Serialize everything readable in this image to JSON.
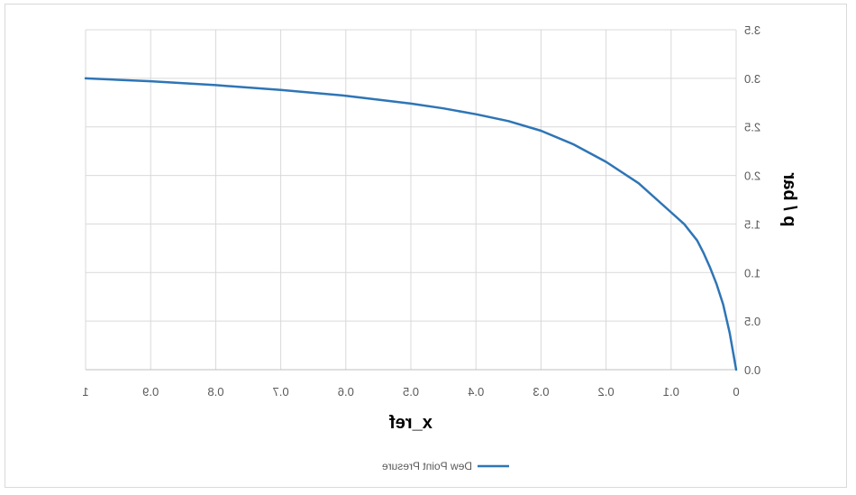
{
  "chart_data": {
    "type": "line",
    "mirrored_horizontally": true,
    "xlabel": "x_ref",
    "ylabel": "p / bar",
    "xlim": [
      0,
      1
    ],
    "ylim": [
      0,
      3.5
    ],
    "xticks": [
      0,
      0.1,
      0.2,
      0.3,
      0.4,
      0.5,
      0.6,
      0.7,
      0.8,
      0.9,
      1
    ],
    "xtick_labels": [
      "0",
      "0.1",
      "0.2",
      "0.3",
      "0.4",
      "0.5",
      "0.6",
      "0.7",
      "0.8",
      "0.9",
      "1"
    ],
    "yticks": [
      0,
      0.5,
      1.0,
      1.5,
      2.0,
      2.5,
      3.0,
      3.5
    ],
    "ytick_labels": [
      "0.0",
      "0.5",
      "1.0",
      "1.5",
      "2.0",
      "2.5",
      "3.0",
      "3.5"
    ],
    "grid": true,
    "legend_position": "bottom",
    "series": [
      {
        "name": "Dew Point Presure",
        "color": "#2e75b6",
        "x": [
          0,
          0.01,
          0.02,
          0.03,
          0.04,
          0.05,
          0.06,
          0.08,
          0.1,
          0.15,
          0.2,
          0.25,
          0.3,
          0.35,
          0.4,
          0.45,
          0.5,
          0.6,
          0.7,
          0.8,
          0.9,
          1.0
        ],
        "y": [
          0,
          0.38,
          0.67,
          0.88,
          1.05,
          1.2,
          1.33,
          1.5,
          1.62,
          1.92,
          2.14,
          2.32,
          2.46,
          2.56,
          2.63,
          2.69,
          2.74,
          2.82,
          2.88,
          2.93,
          2.97,
          3.0
        ]
      }
    ]
  }
}
